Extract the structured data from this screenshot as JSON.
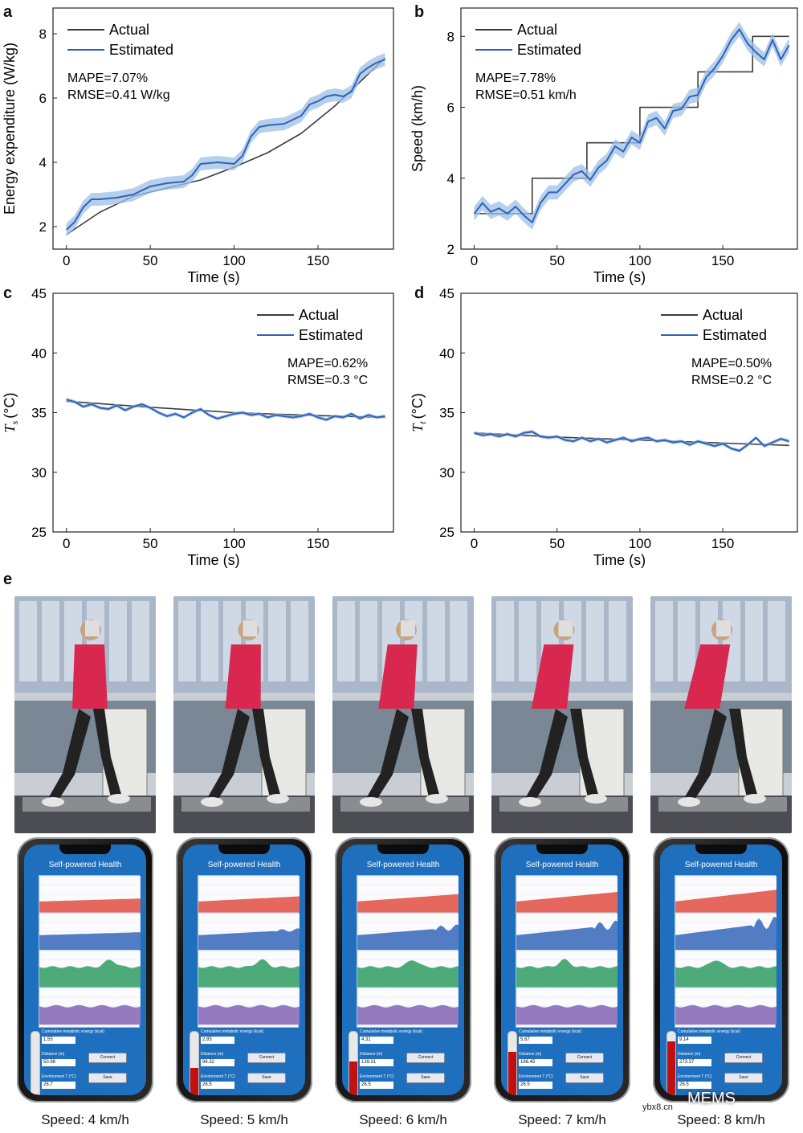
{
  "panels": {
    "a": {
      "letter": "a"
    },
    "b": {
      "letter": "b"
    },
    "c": {
      "letter": "c"
    },
    "d": {
      "letter": "d"
    },
    "e": {
      "letter": "e"
    }
  },
  "chart_data": [
    {
      "id": "a",
      "type": "line",
      "xlabel": "Time (s)",
      "ylabel": "Energy expenditure (W/kg)",
      "xlim": [
        -8,
        195
      ],
      "ylim": [
        1.3,
        8.8
      ],
      "xticks": [
        0,
        50,
        100,
        150
      ],
      "yticks": [
        2,
        4,
        6,
        8
      ],
      "legend": [
        "Actual",
        "Estimated"
      ],
      "legend_position": "top-left",
      "annotations": [
        "MAPE=7.07%",
        "RMSE=0.41 W/kg"
      ],
      "series": [
        {
          "name": "Actual",
          "color": "#3c3c3c",
          "x": [
            0,
            20,
            40,
            60,
            80,
            100,
            120,
            140,
            160,
            180,
            190
          ],
          "y": [
            1.75,
            2.45,
            2.95,
            3.2,
            3.45,
            3.85,
            4.3,
            4.9,
            5.75,
            6.75,
            7.25
          ]
        },
        {
          "name": "Estimated",
          "color": "#2f63b8",
          "band": 0.2,
          "x": [
            0,
            5,
            10,
            15,
            20,
            30,
            40,
            50,
            60,
            70,
            75,
            80,
            90,
            100,
            105,
            110,
            115,
            120,
            130,
            140,
            145,
            150,
            155,
            160,
            165,
            170,
            175,
            180,
            185,
            190
          ],
          "y": [
            1.9,
            2.15,
            2.6,
            2.85,
            2.85,
            2.9,
            3.0,
            3.25,
            3.35,
            3.4,
            3.6,
            3.95,
            4.0,
            3.95,
            4.2,
            4.8,
            5.1,
            5.15,
            5.2,
            5.45,
            5.8,
            5.9,
            6.05,
            6.1,
            6.05,
            6.2,
            6.75,
            6.95,
            7.1,
            7.2
          ]
        }
      ]
    },
    {
      "id": "b",
      "type": "line",
      "xlabel": "Time (s)",
      "ylabel": "Speed (km/h)",
      "xlim": [
        -8,
        195
      ],
      "ylim": [
        2,
        8.8
      ],
      "xticks": [
        0,
        50,
        100,
        150
      ],
      "yticks": [
        2,
        4,
        6,
        8
      ],
      "legend": [
        "Actual",
        "Estimated"
      ],
      "legend_position": "top-left",
      "annotations": [
        "MAPE=7.78%",
        "RMSE=0.51 km/h"
      ],
      "series": [
        {
          "name": "Actual",
          "color": "#3c3c3c",
          "step": true,
          "x": [
            0,
            35,
            35,
            68,
            68,
            100,
            100,
            135,
            135,
            168,
            168,
            190
          ],
          "y": [
            3,
            3,
            4,
            4,
            5,
            5,
            6,
            6,
            7,
            7,
            8,
            8
          ]
        },
        {
          "name": "Estimated",
          "color": "#2f63b8",
          "band": 0.2,
          "x": [
            0,
            5,
            10,
            15,
            20,
            25,
            30,
            35,
            40,
            45,
            50,
            55,
            60,
            65,
            70,
            75,
            80,
            85,
            90,
            95,
            100,
            105,
            110,
            115,
            120,
            125,
            130,
            135,
            140,
            145,
            150,
            155,
            160,
            165,
            170,
            175,
            180,
            185,
            190
          ],
          "y": [
            3.0,
            3.3,
            3.05,
            3.15,
            3.0,
            3.2,
            2.95,
            2.75,
            3.3,
            3.6,
            3.6,
            3.85,
            4.1,
            4.2,
            3.95,
            4.3,
            4.5,
            4.9,
            4.75,
            5.15,
            5.0,
            5.6,
            5.7,
            5.4,
            5.9,
            5.95,
            6.3,
            6.35,
            6.85,
            7.1,
            7.45,
            7.9,
            8.2,
            7.8,
            7.55,
            7.35,
            7.9,
            7.35,
            7.75
          ]
        }
      ]
    },
    {
      "id": "c",
      "type": "line",
      "xlabel": "Time (s)",
      "ylabel_main": "T",
      "ylabel_sub": "s",
      "ylabel_unit": "(°C)",
      "xlim": [
        -8,
        195
      ],
      "ylim": [
        25,
        45
      ],
      "xticks": [
        0,
        50,
        100,
        150
      ],
      "yticks": [
        25,
        30,
        35,
        40,
        45
      ],
      "legend": [
        "Actual",
        "Estimated"
      ],
      "legend_position": "top-right",
      "annotations": [
        "MAPE=0.62%",
        "RMSE=0.3 °C"
      ],
      "series": [
        {
          "name": "Actual",
          "color": "#3c3c3c",
          "x": [
            0,
            50,
            100,
            150,
            190
          ],
          "y": [
            35.95,
            35.45,
            35.0,
            34.75,
            34.6
          ]
        },
        {
          "name": "Estimated",
          "color": "#2f63b8",
          "band": 0.15,
          "x": [
            0,
            5,
            10,
            15,
            20,
            25,
            30,
            35,
            40,
            45,
            50,
            55,
            60,
            65,
            70,
            75,
            80,
            85,
            90,
            95,
            100,
            105,
            110,
            115,
            120,
            125,
            130,
            135,
            140,
            145,
            150,
            155,
            160,
            165,
            170,
            175,
            180,
            185,
            190
          ],
          "y": [
            36.1,
            35.9,
            35.5,
            35.7,
            35.4,
            35.3,
            35.6,
            35.2,
            35.5,
            35.7,
            35.4,
            35.0,
            34.7,
            34.9,
            34.6,
            35.0,
            35.3,
            34.8,
            34.5,
            34.7,
            34.9,
            35.0,
            34.8,
            34.9,
            34.6,
            34.8,
            34.7,
            34.6,
            34.7,
            34.9,
            34.6,
            34.4,
            34.7,
            34.6,
            34.9,
            34.5,
            34.8,
            34.6,
            34.7
          ]
        }
      ]
    },
    {
      "id": "d",
      "type": "line",
      "xlabel": "Time (s)",
      "ylabel_main": "T",
      "ylabel_sub": "t",
      "ylabel_unit": "(°C)",
      "xlim": [
        -8,
        195
      ],
      "ylim": [
        25,
        45
      ],
      "xticks": [
        0,
        50,
        100,
        150
      ],
      "yticks": [
        25,
        30,
        35,
        40,
        45
      ],
      "legend": [
        "Actual",
        "Estimated"
      ],
      "legend_position": "top-right",
      "annotations": [
        "MAPE=0.50%",
        "RMSE=0.2 °C"
      ],
      "series": [
        {
          "name": "Actual",
          "color": "#3c3c3c",
          "x": [
            0,
            50,
            100,
            150,
            190
          ],
          "y": [
            33.3,
            32.95,
            32.7,
            32.45,
            32.25
          ]
        },
        {
          "name": "Estimated",
          "color": "#2f63b8",
          "band": 0.15,
          "x": [
            0,
            5,
            10,
            15,
            20,
            25,
            30,
            35,
            40,
            45,
            50,
            55,
            60,
            65,
            70,
            75,
            80,
            85,
            90,
            95,
            100,
            105,
            110,
            115,
            120,
            125,
            130,
            135,
            140,
            145,
            150,
            155,
            160,
            165,
            170,
            175,
            180,
            185,
            190
          ],
          "y": [
            33.3,
            33.1,
            33.2,
            33.0,
            33.2,
            33.0,
            33.3,
            33.4,
            33.0,
            32.9,
            33.0,
            32.7,
            32.6,
            32.9,
            32.6,
            32.8,
            32.5,
            32.7,
            32.9,
            32.6,
            32.8,
            32.9,
            32.6,
            32.7,
            32.5,
            32.6,
            32.3,
            32.6,
            32.4,
            32.2,
            32.4,
            32.0,
            31.8,
            32.3,
            32.9,
            32.2,
            32.5,
            32.8,
            32.6
          ]
        }
      ]
    }
  ],
  "phones": [
    {
      "caption": "Speed: 4 km/h",
      "energy": "1.55",
      "distance": "50.98",
      "env": "26.7",
      "level": 0.05
    },
    {
      "caption": "Speed: 5 km/h",
      "energy": "2.85",
      "distance": "96.32",
      "env": "26.5",
      "level": 0.45
    },
    {
      "caption": "Speed: 6 km/h",
      "energy": "4.31",
      "distance": "139.31",
      "env": "26.5",
      "level": 0.55
    },
    {
      "caption": "Speed: 7 km/h",
      "energy": "5.87",
      "distance": "186.45",
      "env": "26.5",
      "level": 0.7
    },
    {
      "caption": "Speed: 8 km/h",
      "energy": "9.14",
      "distance": "273.37",
      "env": "26.5",
      "level": 0.85
    }
  ],
  "app": {
    "title": "Self-powered Health",
    "energy_label": "Cumulative metabolic energy (kcal)",
    "distance_label": "Distance (m)",
    "env_label": "Environment T (°C)",
    "connect": "Connect",
    "save": "Save",
    "strip_colors": [
      "#e2574c",
      "#3f6fbf",
      "#3aa26a",
      "#8a6cb8"
    ]
  },
  "watermark": {
    "text": "MEMS",
    "small": "ybx8.cn"
  }
}
